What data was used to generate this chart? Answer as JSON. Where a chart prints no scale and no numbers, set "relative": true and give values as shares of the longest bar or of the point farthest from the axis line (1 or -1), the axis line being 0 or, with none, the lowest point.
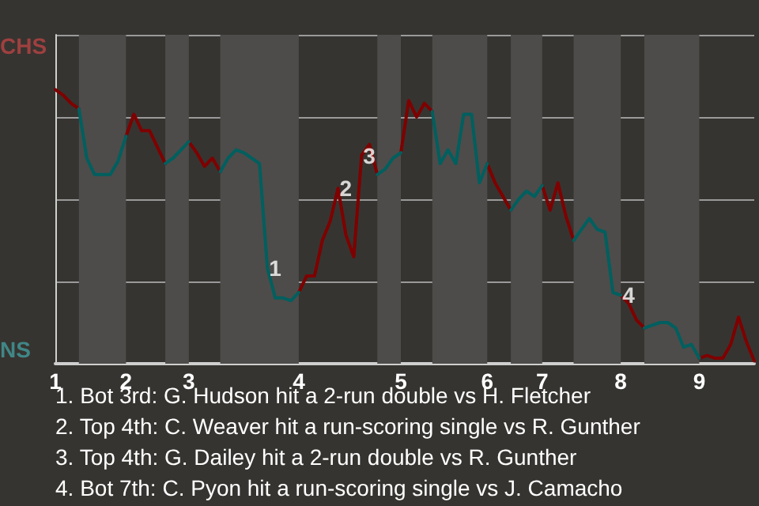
{
  "chart_data": {
    "type": "line",
    "relative": true,
    "categories": [
      "1",
      null,
      null,
      null,
      null,
      null,
      null,
      null,
      null,
      "2",
      null,
      null,
      null,
      null,
      null,
      null,
      null,
      "3",
      null,
      null,
      null,
      null,
      null,
      null,
      null,
      null,
      null,
      null,
      null,
      null,
      null,
      "4",
      null,
      null,
      null,
      null,
      null,
      null,
      null,
      null,
      null,
      null,
      null,
      null,
      "5",
      null,
      null,
      null,
      null,
      null,
      null,
      null,
      null,
      null,
      null,
      "6",
      null,
      null,
      null,
      null,
      null,
      null,
      "7",
      null,
      null,
      null,
      null,
      null,
      null,
      null,
      null,
      null,
      "8",
      null,
      null,
      null,
      null,
      null,
      null,
      null,
      null,
      null,
      "9",
      null,
      null,
      null,
      null,
      null,
      null,
      null
    ],
    "grid": "y",
    "marker": "none",
    "line_style": "solid",
    "series": [
      {
        "color": "#7f0000",
        "values": [
          1,
          0.98,
          0.95,
          0.93,
          null,
          null,
          null,
          null,
          null,
          0.83,
          0.91,
          0.85,
          0.85,
          0.79,
          0.73,
          null,
          null,
          0.81,
          0.77,
          0.72,
          0.75,
          0.7,
          null,
          null,
          null,
          null,
          null,
          null,
          null,
          null,
          null,
          0.26,
          0.32,
          0.32,
          0.45,
          0.52,
          0.64,
          0.47,
          0.39,
          0.76,
          0.8,
          0.69,
          null,
          null,
          0.77,
          0.96,
          0.9,
          0.95,
          0.92,
          null,
          null,
          null,
          null,
          null,
          null,
          0.73,
          0.66,
          0.61,
          0.56,
          null,
          null,
          null,
          0.65,
          0.56,
          0.66,
          0.54,
          0.45,
          null,
          null,
          null,
          null,
          null,
          0.25,
          0.22,
          0.16,
          0.13,
          null,
          null,
          null,
          null,
          null,
          null,
          0.02,
          0.03,
          0.02,
          0.02,
          0.07,
          0.17,
          0.08,
          0.01
        ]
      },
      {
        "color": "#005f5f",
        "values": [
          null,
          null,
          null,
          0.93,
          0.75,
          0.69,
          0.69,
          0.69,
          0.74,
          0.83,
          null,
          null,
          null,
          null,
          0.73,
          0.75,
          0.78,
          0.81,
          null,
          null,
          null,
          0.7,
          0.75,
          0.78,
          0.77,
          0.75,
          0.73,
          0.35,
          0.24,
          0.24,
          0.23,
          0.26,
          null,
          null,
          null,
          null,
          null,
          null,
          null,
          null,
          null,
          0.69,
          0.71,
          0.75,
          0.77,
          null,
          null,
          null,
          0.92,
          0.73,
          0.78,
          0.73,
          0.91,
          0.91,
          0.66,
          0.73,
          null,
          null,
          0.56,
          0.6,
          0.63,
          0.61,
          0.65,
          null,
          null,
          null,
          0.45,
          0.49,
          0.53,
          0.49,
          0.48,
          0.26,
          0.25,
          null,
          null,
          0.13,
          0.14,
          0.15,
          0.15,
          0.13,
          0.06,
          0.07,
          0.02,
          null,
          null,
          null,
          null,
          null,
          null,
          null
        ]
      }
    ],
    "annotations": [
      "CHS",
      "NS",
      {
        "text": "1",
        "y": 0.35
      },
      {
        "text": "2",
        "y": 0.64
      },
      {
        "text": "3",
        "y": 0.76
      },
      {
        "text": "4",
        "y": 0.25
      },
      "1. Bot 3rd: G. Hudson hit a 2-run double vs H. Fletcher",
      "2. Top 4th: C. Weaver hit a run-scoring single vs R. Gunther",
      "3. Top 4th: G. Dailey hit a 2-run double vs R. Gunther",
      "4. Bot 7th: C. Pyon hit a run-scoring single vs J. Camacho"
    ]
  }
}
